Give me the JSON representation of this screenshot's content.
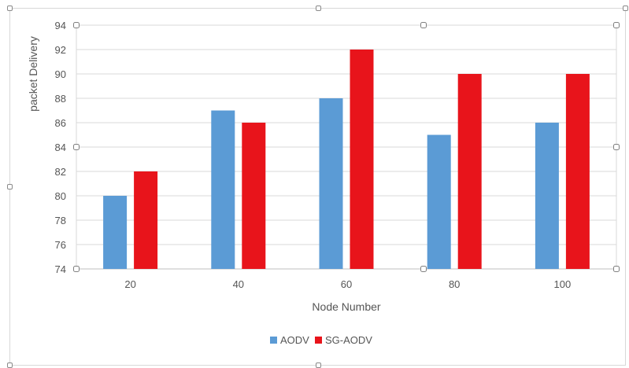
{
  "chart_data": {
    "type": "bar",
    "title": "",
    "xlabel": "Node Number",
    "ylabel": "packet Delivery",
    "categories": [
      "20",
      "40",
      "60",
      "80",
      "100"
    ],
    "series": [
      {
        "name": "AODV",
        "values": [
          80,
          87,
          88,
          85,
          86
        ],
        "color": "#5b9bd5"
      },
      {
        "name": "SG-AODV",
        "values": [
          82,
          86,
          92,
          90,
          90
        ],
        "color": "#e8141b"
      }
    ],
    "ylim": [
      74,
      94
    ],
    "yticks": [
      74,
      76,
      78,
      80,
      82,
      84,
      86,
      88,
      90,
      92,
      94
    ],
    "grid": true,
    "legend": "bottom-center"
  }
}
